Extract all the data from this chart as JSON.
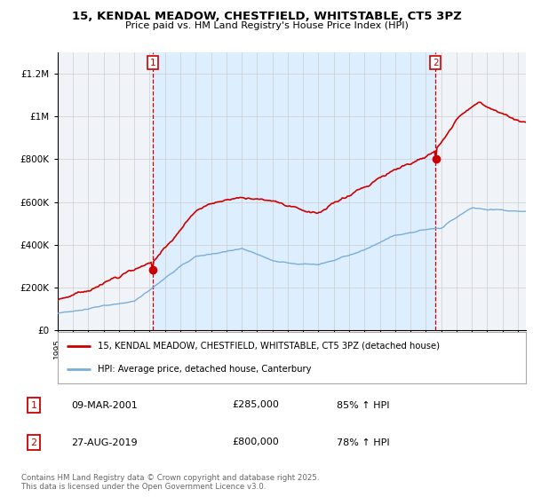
{
  "title": "15, KENDAL MEADOW, CHESTFIELD, WHITSTABLE, CT5 3PZ",
  "subtitle": "Price paid vs. HM Land Registry's House Price Index (HPI)",
  "legend_line1": "15, KENDAL MEADOW, CHESTFIELD, WHITSTABLE, CT5 3PZ (detached house)",
  "legend_line2": "HPI: Average price, detached house, Canterbury",
  "annotation1_date": "09-MAR-2001",
  "annotation1_price": "£285,000",
  "annotation1_hpi": "85% ↑ HPI",
  "annotation2_date": "27-AUG-2019",
  "annotation2_price": "£800,000",
  "annotation2_hpi": "78% ↑ HPI",
  "footer": "Contains HM Land Registry data © Crown copyright and database right 2025.\nThis data is licensed under the Open Government Licence v3.0.",
  "red_color": "#cc0000",
  "blue_color": "#7aadda",
  "shade_color": "#ddeeff",
  "grid_color": "#cccccc",
  "bg_color": "#f0f4f8",
  "sale1_year": 2001.2,
  "sale2_year": 2019.625,
  "sale1_price": 285000,
  "sale2_price": 800000,
  "ylim_max": 1300000,
  "ylim_min": 0,
  "xstart": 1995,
  "xend": 2025.5
}
